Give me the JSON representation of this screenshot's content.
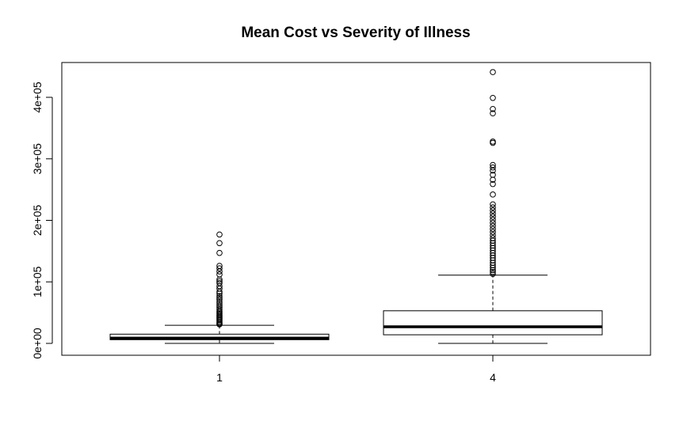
{
  "chart_data": {
    "type": "box",
    "title": "Mean Cost vs Severity of Illness",
    "xlabel": "",
    "ylabel": "",
    "ylim": [
      -20000,
      455000
    ],
    "y_ticks": [
      {
        "value": 0,
        "label": "0e+00"
      },
      {
        "value": 100000,
        "label": "1e+05"
      },
      {
        "value": 200000,
        "label": "2e+05"
      },
      {
        "value": 300000,
        "label": "3e+05"
      },
      {
        "value": 400000,
        "label": "4e+05"
      }
    ],
    "categories": [
      "1",
      "4"
    ],
    "boxes": [
      {
        "category": "1",
        "whisker_low": 0,
        "q1": 6000,
        "median": 8500,
        "q3": 15000,
        "whisker_high": 29500,
        "outliers": [
          177000,
          163000,
          147000,
          126000,
          122000,
          117000,
          112000,
          104000,
          101000,
          98000,
          93000,
          89000,
          84000,
          81000,
          77000,
          74000,
          71000,
          67000,
          64000,
          61000,
          58000,
          55000,
          52000,
          50000,
          48000,
          46000,
          44000,
          42000,
          40000,
          38000,
          36000,
          34000,
          32000,
          31000
        ]
      },
      {
        "category": "4",
        "whisker_low": 0,
        "q1": 14000,
        "median": 27000,
        "q3": 53000,
        "whisker_high": 111000,
        "outliers": [
          441000,
          399000,
          381000,
          374000,
          328000,
          326000,
          290000,
          286000,
          281000,
          274000,
          266000,
          259000,
          242000,
          226000,
          221000,
          216000,
          211000,
          206000,
          201000,
          196000,
          191000,
          186000,
          181000,
          176000,
          171000,
          167000,
          163000,
          159000,
          155000,
          151000,
          147000,
          143000,
          139000,
          135000,
          131000,
          127000,
          123000,
          119000,
          116000,
          113000
        ]
      }
    ]
  }
}
